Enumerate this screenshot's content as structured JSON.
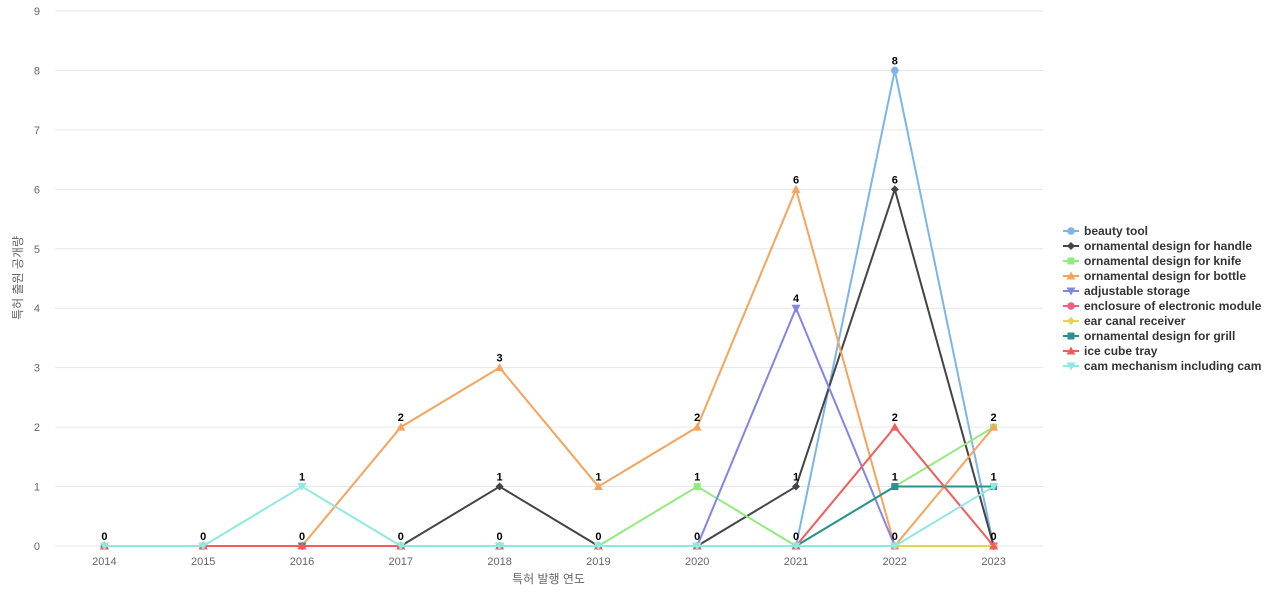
{
  "chart_data": {
    "type": "line",
    "xlabel": "특허 발행 연도",
    "ylabel": "특허 출원 공개량",
    "ylim": [
      0,
      9
    ],
    "yticks": [
      0,
      1,
      2,
      3,
      4,
      5,
      6,
      7,
      8,
      9
    ],
    "x": [
      "2014",
      "2015",
      "2016",
      "2017",
      "2018",
      "2019",
      "2020",
      "2021",
      "2022",
      "2023"
    ],
    "grid": true,
    "legend_position": "right",
    "series": [
      {
        "name": "beauty tool",
        "color": "#7cb5ec",
        "marker": "circle",
        "values": [
          0,
          0,
          0,
          0,
          0,
          0,
          0,
          0,
          8,
          0
        ]
      },
      {
        "name": "ornamental design for handle",
        "color": "#434348",
        "marker": "diamond",
        "values": [
          0,
          0,
          0,
          0,
          1,
          0,
          0,
          1,
          6,
          0
        ]
      },
      {
        "name": "ornamental design for knife",
        "color": "#90ed7d",
        "marker": "square",
        "values": [
          0,
          0,
          0,
          0,
          0,
          0,
          1,
          0,
          1,
          2
        ]
      },
      {
        "name": "ornamental design for bottle",
        "color": "#f7a35c",
        "marker": "triangle",
        "values": [
          0,
          0,
          0,
          2,
          3,
          1,
          2,
          6,
          0,
          2
        ]
      },
      {
        "name": "adjustable storage",
        "color": "#8085e9",
        "marker": "triangle-down",
        "values": [
          0,
          0,
          0,
          0,
          0,
          0,
          0,
          4,
          0,
          0
        ]
      },
      {
        "name": "enclosure of electronic module",
        "color": "#f15c80",
        "marker": "circle",
        "values": [
          0,
          0,
          0,
          0,
          0,
          0,
          0,
          0,
          0,
          0
        ]
      },
      {
        "name": "ear canal receiver",
        "color": "#e4d354",
        "marker": "diamond",
        "values": [
          0,
          0,
          0,
          0,
          0,
          0,
          0,
          0,
          0,
          0
        ]
      },
      {
        "name": "ornamental design for grill",
        "color": "#2b908f",
        "marker": "square",
        "values": [
          0,
          0,
          0,
          0,
          0,
          0,
          0,
          0,
          1,
          1
        ]
      },
      {
        "name": "ice cube tray",
        "color": "#f45b5b",
        "marker": "triangle",
        "values": [
          0,
          0,
          0,
          0,
          0,
          0,
          0,
          0,
          2,
          0
        ]
      },
      {
        "name": "cam mechanism including cam",
        "color": "#91e8e1",
        "marker": "triangle-down",
        "values": [
          0,
          0,
          1,
          0,
          0,
          0,
          0,
          0,
          0,
          1
        ]
      }
    ],
    "data_labels": [
      0,
      0,
      0,
      2,
      3,
      1,
      2,
      6,
      8,
      2
    ]
  }
}
